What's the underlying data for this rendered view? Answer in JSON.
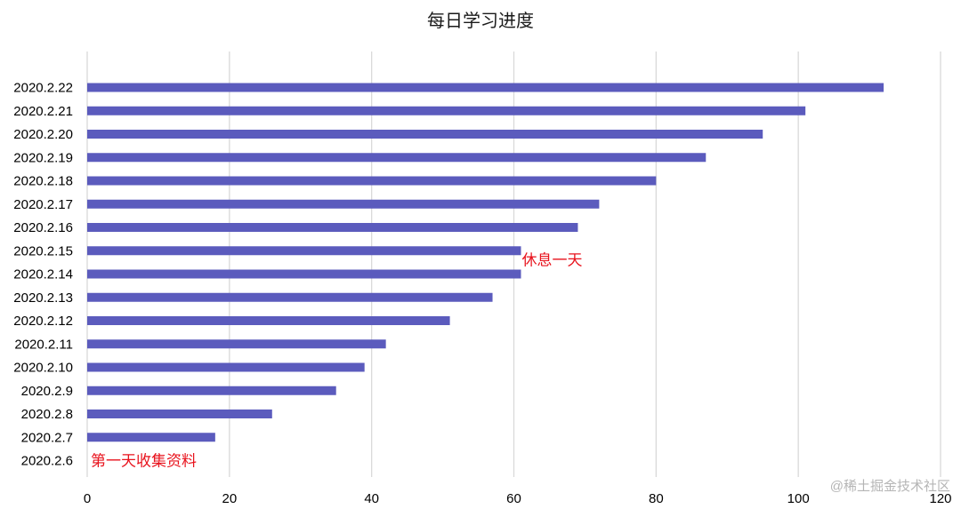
{
  "chart_data": {
    "type": "bar",
    "orientation": "horizontal",
    "title": "每日学习进度",
    "xlabel": "",
    "ylabel": "",
    "xlim": [
      0,
      120
    ],
    "xticks": [
      0,
      20,
      40,
      60,
      80,
      100,
      120
    ],
    "grid": true,
    "bar_color": "#5b5bbd",
    "categories": [
      "2020.2.22",
      "2020.2.21",
      "2020.2.20",
      "2020.2.19",
      "2020.2.18",
      "2020.2.17",
      "2020.2.16",
      "2020.2.15",
      "2020.2.14",
      "2020.2.13",
      "2020.2.12",
      "2020.2.11",
      "2020.2.10",
      "2020.2.9",
      "2020.2.8",
      "2020.2.7",
      "2020.2.6"
    ],
    "values": [
      112,
      101,
      95,
      87,
      80,
      72,
      69,
      61,
      61,
      57,
      51,
      42,
      39,
      35,
      26,
      18,
      0
    ],
    "annotations": [
      {
        "text": "休息一天",
        "category": "2020.2.15",
        "color": "#e8121c"
      },
      {
        "text": "第一天收集资料",
        "category": "2020.2.6",
        "color": "#e8121c"
      }
    ]
  },
  "watermark": "@稀土掘金技术社区"
}
